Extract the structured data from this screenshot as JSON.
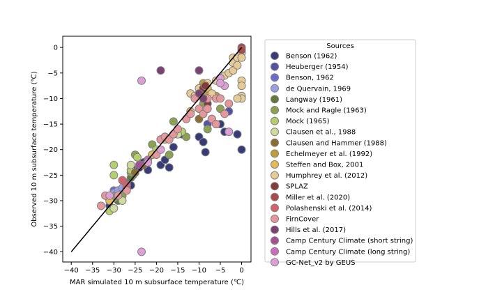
{
  "chart_data": {
    "type": "scatter",
    "xlabel": "MAR simulated 10 m subsurface temperature (℃)",
    "ylabel": "Observed 10 m subsurface temperature (℃)",
    "xlim": [
      -42,
      2.2
    ],
    "ylim": [
      -42,
      2.2
    ],
    "xticks": [
      -40,
      -35,
      -30,
      -25,
      -20,
      -15,
      -10,
      -5,
      0
    ],
    "yticks": [
      0,
      -5,
      -10,
      -15,
      -20,
      -25,
      -30,
      -35,
      -40
    ],
    "xtick_labels": [
      "−40",
      "−35",
      "−30",
      "−25",
      "−20",
      "−15",
      "−10",
      "−5",
      "0"
    ],
    "ytick_labels": [
      "0",
      "−5",
      "−10",
      "−15",
      "−20",
      "−25",
      "−30",
      "−35",
      "−40"
    ],
    "grid": false,
    "reference_line": {
      "x": [
        -40,
        0
      ],
      "y": [
        -40,
        0
      ],
      "color": "#000000"
    },
    "legend": {
      "title": "Sources",
      "placement": "outside-right"
    },
    "series": [
      {
        "name": "Benson (1962)",
        "color": "#393b79",
        "points": [
          [
            -31,
            -31
          ],
          [
            -29,
            -29
          ],
          [
            -28,
            -26
          ],
          [
            -27,
            -26.5
          ],
          [
            -26,
            -27
          ],
          [
            -25,
            -24
          ],
          [
            -24,
            -23.5
          ],
          [
            -23,
            -22.5
          ],
          [
            -22,
            -24
          ],
          [
            -21,
            -21
          ],
          [
            -19,
            -23
          ],
          [
            -18,
            -22
          ],
          [
            -17,
            -23.5
          ],
          [
            -16,
            -19.5
          ],
          [
            -14,
            -17
          ],
          [
            -10,
            -17.5
          ],
          [
            -9,
            -18.5
          ],
          [
            -8.5,
            -20.5
          ],
          [
            -7,
            -14
          ],
          [
            -6,
            -15
          ],
          [
            -5,
            -15
          ],
          [
            -4,
            -16.5
          ],
          [
            -1,
            -17
          ],
          [
            0,
            -20
          ]
        ]
      },
      {
        "name": "Heuberger  (1954)",
        "color": "#5254a3",
        "points": [
          [
            -3,
            -12.5
          ],
          [
            -8,
            -15
          ],
          [
            -7,
            -14
          ]
        ]
      },
      {
        "name": "Benson, 1962",
        "color": "#6b6ecf",
        "points": [
          [
            -30,
            -28
          ],
          [
            -27,
            -26.5
          ],
          [
            -25.5,
            -25
          ],
          [
            -23,
            -23
          ],
          [
            -21,
            -21
          ]
        ]
      },
      {
        "name": "de Quervain, 1969",
        "color": "#9c9ede",
        "points": [
          [
            -30,
            -28.5
          ],
          [
            -29.5,
            -29
          ],
          [
            -29,
            -28
          ],
          [
            -28,
            -27.5
          ],
          [
            -25,
            -24.5
          ]
        ]
      },
      {
        "name": "Langway (1961)",
        "color": "#637939",
        "points": [
          [
            -29,
            -30
          ],
          [
            -28,
            -29
          ],
          [
            -27,
            -27
          ],
          [
            -26,
            -25.5
          ]
        ]
      },
      {
        "name": "Mock and Ragle (1963)",
        "color": "#8ca252",
        "points": [
          [
            -31,
            -30
          ],
          [
            -30,
            -29.5
          ],
          [
            -28,
            -29
          ],
          [
            -27,
            -28
          ],
          [
            -26,
            -24.5
          ],
          [
            -25,
            -21
          ],
          [
            -21,
            -19
          ],
          [
            -19,
            -18
          ],
          [
            -17,
            -21
          ],
          [
            -16,
            -14.5
          ],
          [
            -13,
            -17.5
          ],
          [
            -9,
            -11
          ],
          [
            -8,
            -16
          ],
          [
            -5,
            -12
          ]
        ]
      },
      {
        "name": "Mock (1965)",
        "color": "#b5cf6b",
        "points": [
          [
            -31,
            -32
          ],
          [
            -30,
            -23
          ],
          [
            -30,
            -25
          ],
          [
            -27,
            -27.5
          ],
          [
            -26,
            -24
          ],
          [
            -24.5,
            -21.5
          ],
          [
            -22,
            -22
          ],
          [
            -20,
            -20
          ],
          [
            -18,
            -17.5
          ],
          [
            -14,
            -16.5
          ]
        ]
      },
      {
        "name": "Clausen et al., 1988",
        "color": "#cedb9c",
        "points": [
          [
            -30,
            -31.5
          ],
          [
            -28,
            -30
          ],
          [
            -26,
            -23
          ],
          [
            -15,
            -17
          ]
        ]
      },
      {
        "name": "Clausen and Hammer (1988)",
        "color": "#8c6d31",
        "points": [
          [
            -25,
            -24.5
          ],
          [
            -23,
            -23
          ],
          [
            -10,
            -14
          ]
        ]
      },
      {
        "name": "Echelmeyer et al. (1992)",
        "color": "#bd9e39",
        "points": [
          [
            -9,
            -7
          ],
          [
            -8,
            -9
          ],
          [
            -6,
            -9.5
          ]
        ]
      },
      {
        "name": "Steffen and Box, 2001",
        "color": "#e7ba52",
        "points": [
          [
            -31,
            -30
          ],
          [
            -21,
            -21
          ],
          [
            -18,
            -18
          ],
          [
            -12,
            -12.5
          ],
          [
            -8,
            -8
          ]
        ]
      },
      {
        "name": "Humphrey et al. (2012)",
        "color": "#e7cb94",
        "points": [
          [
            -12,
            -9
          ],
          [
            -11,
            -9.5
          ],
          [
            -10,
            -8
          ],
          [
            -9,
            -8
          ],
          [
            -8,
            -7
          ],
          [
            -7,
            -9
          ],
          [
            -6,
            -6.5
          ],
          [
            -5,
            -6
          ],
          [
            -4,
            -5.5
          ],
          [
            -3,
            -5
          ],
          [
            -2,
            -2
          ],
          [
            -2,
            -4.5
          ],
          [
            -2,
            -3
          ],
          [
            -1,
            -2
          ],
          [
            -1,
            -3.5
          ],
          [
            0,
            -1
          ],
          [
            0,
            -2
          ],
          [
            0,
            -6.5
          ],
          [
            0,
            -7.5
          ],
          [
            0,
            -9.5
          ],
          [
            0,
            -10
          ],
          [
            -1,
            -10
          ]
        ]
      },
      {
        "name": "SPLAZ",
        "color": "#843c39",
        "points": [
          [
            -9,
            -8
          ],
          [
            -8,
            -11
          ],
          [
            -8.5,
            -7.5
          ]
        ]
      },
      {
        "name": "Miller et al. (2020)",
        "color": "#ad494a",
        "points": [
          [
            0,
            0
          ],
          [
            0,
            -0.5
          ]
        ]
      },
      {
        "name": "Polashenski et al. (2014)",
        "color": "#d6616b",
        "points": [
          [
            -28,
            -26
          ],
          [
            -27,
            -27
          ]
        ]
      },
      {
        "name": "FirnCover",
        "color": "#e7969c",
        "points": [
          [
            -33,
            -31
          ],
          [
            -32,
            -29
          ],
          [
            -29,
            -29
          ],
          [
            -27,
            -28
          ],
          [
            -24,
            -23
          ],
          [
            -22,
            -22
          ],
          [
            -20,
            -21
          ],
          [
            -19,
            -18
          ],
          [
            -18,
            -17.5
          ],
          [
            -17,
            -18
          ],
          [
            -16,
            -17
          ],
          [
            -15,
            -16
          ],
          [
            -13,
            -14
          ],
          [
            -12,
            -13
          ],
          [
            -11,
            -10
          ],
          [
            -10,
            -12
          ],
          [
            -9,
            -13
          ],
          [
            -8,
            -10
          ],
          [
            -8,
            -12
          ],
          [
            -7,
            -14
          ],
          [
            -6,
            -15
          ],
          [
            -6,
            -10
          ],
          [
            -5,
            -10
          ],
          [
            -4,
            -13
          ],
          [
            -3,
            -11
          ]
        ]
      },
      {
        "name": "Hills et al. (2017)",
        "color": "#7b4173",
        "points": [
          [
            -19,
            -4.5
          ],
          [
            -10,
            -4.5
          ],
          [
            -10,
            -9
          ],
          [
            -9,
            -10
          ]
        ]
      },
      {
        "name": "Camp Century Climate (short string)",
        "color": "#a55194",
        "points": [
          [
            -24,
            -23
          ]
        ]
      },
      {
        "name": "Camp Century Climate (long string)",
        "color": "#ce6dbd",
        "points": [
          [
            -22,
            -22
          ]
        ]
      },
      {
        "name": "GC-Net_v2 by GEUS",
        "color": "#de9ed6",
        "points": [
          [
            -31,
            -29
          ],
          [
            -23.5,
            -6.5
          ],
          [
            -23.5,
            -40
          ],
          [
            -22,
            -22.5
          ],
          [
            -19,
            -20
          ],
          [
            -5,
            -6
          ],
          [
            -4,
            -7.5
          ],
          [
            -3,
            -16.5
          ],
          [
            -5,
            -7
          ]
        ]
      }
    ]
  }
}
